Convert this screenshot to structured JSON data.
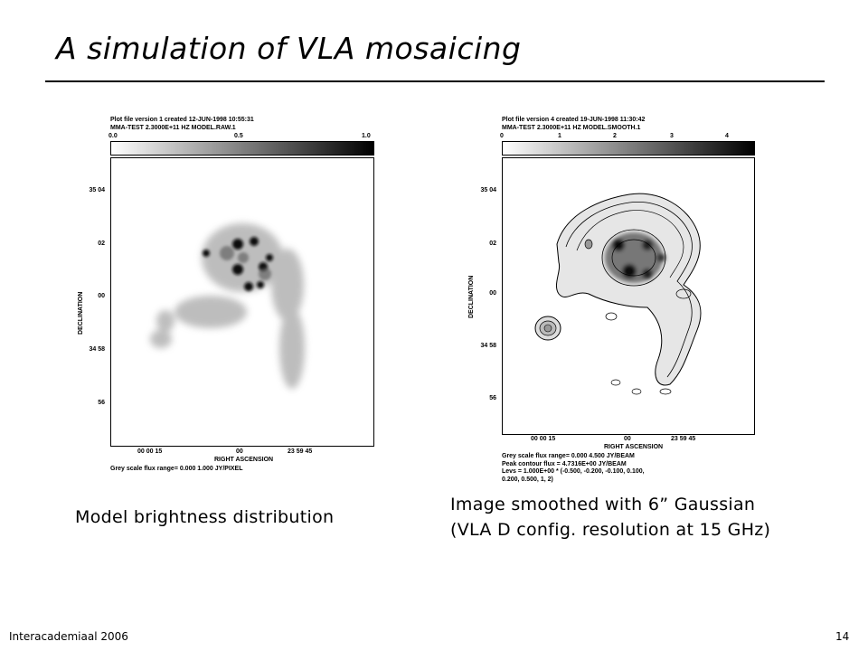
{
  "slide": {
    "title": "A simulation of VLA mosaicing",
    "footer_left": "Interacademiaal 2006",
    "page_number": "14"
  },
  "left_panel": {
    "header_line1": "Plot file version 1  created 12-JUN-1998 10:55:31",
    "header_line2": "MMA-TEST  2.3000E+11 HZ  MODEL.RAW.1",
    "wedge_ticks": [
      "0.0",
      "0.5",
      "1.0"
    ],
    "y_ticks": [
      "35 04",
      "02",
      "00",
      "34 58",
      "56"
    ],
    "y_label": "DECLINATION",
    "x_ticks": [
      "00 00 15",
      "00",
      "23 59 45"
    ],
    "x_label": "RIGHT ASCENSION",
    "footer_line1": "Grey scale flux range= 0.000 1.000 JY/PIXEL",
    "caption": "Model brightness distribution"
  },
  "right_panel": {
    "header_line1": "Plot file version 4  created 19-JUN-1998 11:30:42",
    "header_line2": "MMA-TEST  2.3000E+11 HZ  MODEL.SMOOTH.1",
    "wedge_ticks": [
      "0",
      "1",
      "2",
      "3",
      "4"
    ],
    "y_ticks": [
      "35 04",
      "02",
      "00",
      "34 58",
      "56"
    ],
    "y_label": "DECLINATION",
    "x_ticks": [
      "00 00 15",
      "00",
      "23 59 45"
    ],
    "x_label": "RIGHT ASCENSION",
    "footer_line1": "Grey scale flux range= 0.000 4.500 JY/BEAM",
    "footer_line2": "Peak contour flux =  4.7316E+00 JY/BEAM",
    "footer_line3": "Levs = 1.000E+00 * (-0.500, -0.200, -0.100, 0.100,",
    "footer_line4": "0.200, 0.500, 1, 2)",
    "caption_line1": "Image smoothed with 6” Gaussian",
    "caption_line2": "(VLA D config. resolution at 15 GHz)"
  }
}
